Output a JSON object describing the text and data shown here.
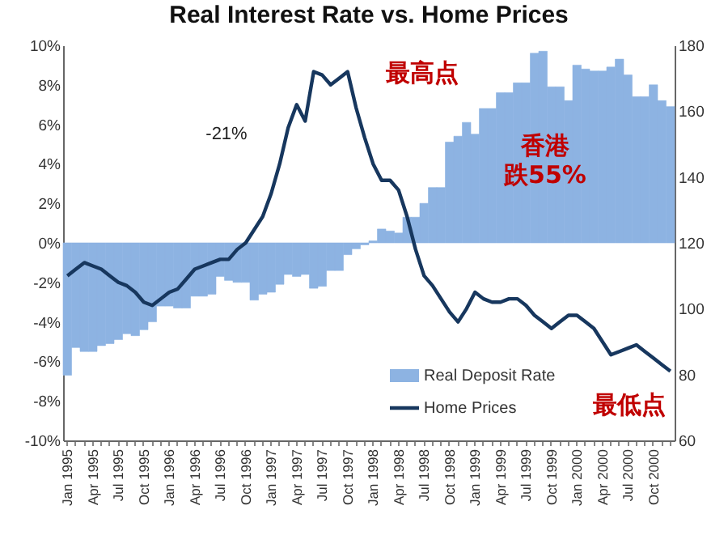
{
  "chart_data": {
    "type": "bar",
    "title": "Real Interest Rate vs. Home Prices",
    "categories": [
      "Jan 1995",
      null,
      null,
      "Apr 1995",
      null,
      null,
      "Jul 1995",
      null,
      null,
      "Oct 1995",
      null,
      null,
      "Jan 1996",
      null,
      null,
      "Apr 1996",
      null,
      null,
      "Jul 1996",
      null,
      null,
      "Oct 1996",
      null,
      null,
      "Jan 1997",
      null,
      null,
      "Apr 1997",
      null,
      null,
      "Jul 1997",
      null,
      null,
      "Oct 1997",
      null,
      null,
      "Jan 1998",
      null,
      null,
      "Apr 1998",
      null,
      null,
      "Jul 1998",
      null,
      null,
      "Oct 1998",
      null,
      null,
      "Jan 1999",
      null,
      null,
      "Apr 1999",
      null,
      null,
      "Jul 1999",
      null,
      null,
      "Oct 1999",
      null,
      null,
      "Jan 2000",
      null,
      null,
      "Apr 2000",
      null,
      null,
      "Jul 2000",
      null,
      null,
      "Oct 2000",
      null,
      null
    ],
    "series": [
      {
        "name": "Real Deposit Rate",
        "color": "#8db3e2",
        "values": [
          -6.7,
          -5.3,
          -5.5,
          -5.5,
          -5.2,
          -5.1,
          -4.9,
          -4.6,
          -4.7,
          -4.4,
          -4.0,
          -3.2,
          -3.2,
          -3.3,
          -3.3,
          -2.7,
          -2.7,
          -2.6,
          -1.7,
          -1.9,
          -2.0,
          -2.0,
          -2.9,
          -2.6,
          -2.5,
          -2.1,
          -1.6,
          -1.7,
          -1.6,
          -2.3,
          -2.2,
          -1.4,
          -1.4,
          -0.6,
          -0.3,
          -0.1,
          0.1,
          0.7,
          0.6,
          0.5,
          1.3,
          1.3,
          2.0,
          2.8,
          2.8,
          5.1,
          5.4,
          6.1,
          5.5,
          6.8,
          6.8,
          7.6,
          7.6,
          8.1,
          8.1,
          9.6,
          9.7,
          7.9,
          7.9,
          7.2,
          9.0,
          8.8,
          8.7,
          8.7,
          8.9,
          9.3,
          8.5,
          7.4,
          7.4,
          8.0,
          7.2,
          6.9
        ]
      },
      {
        "name": "Home Prices",
        "type": "line",
        "axis": "y2",
        "color": "#17375e",
        "values": [
          110,
          112,
          114,
          113,
          112,
          110,
          108,
          107,
          105,
          102,
          101,
          103,
          105,
          106,
          109,
          112,
          113,
          114,
          115,
          115,
          118,
          120,
          124,
          128,
          135,
          144,
          155,
          162,
          157,
          172,
          171,
          168,
          170,
          172,
          161,
          152,
          144,
          139,
          139,
          136,
          128,
          118,
          110,
          107,
          103,
          99,
          96,
          100,
          105,
          103,
          102,
          102,
          103,
          103,
          101,
          98,
          96,
          94,
          96,
          98,
          98,
          96,
          94,
          90,
          86,
          87,
          88,
          89,
          87,
          85,
          83,
          81
        ]
      }
    ],
    "ylim": [
      -10,
      10
    ],
    "yticks": [
      {
        "value": -10,
        "label": "-10%"
      },
      {
        "value": -8,
        "label": "-8%"
      },
      {
        "value": -6,
        "label": "-6%"
      },
      {
        "value": -4,
        "label": "-4%"
      },
      {
        "value": -2,
        "label": "-2%"
      },
      {
        "value": 0,
        "label": "0%"
      },
      {
        "value": 2,
        "label": "2%"
      },
      {
        "value": 4,
        "label": "4%"
      },
      {
        "value": 6,
        "label": "6%"
      },
      {
        "value": 8,
        "label": "8%"
      },
      {
        "value": 10,
        "label": "10%"
      }
    ],
    "y2lim": [
      60,
      180
    ],
    "y2ticks": [
      60,
      80,
      100,
      120,
      140,
      160,
      180
    ],
    "annotations": [
      "-21%",
      "最高点",
      "香港",
      "跌55%",
      "最低点"
    ],
    "legend": "bottom right",
    "marker": "none",
    "line_style": "solid",
    "grid": false
  }
}
